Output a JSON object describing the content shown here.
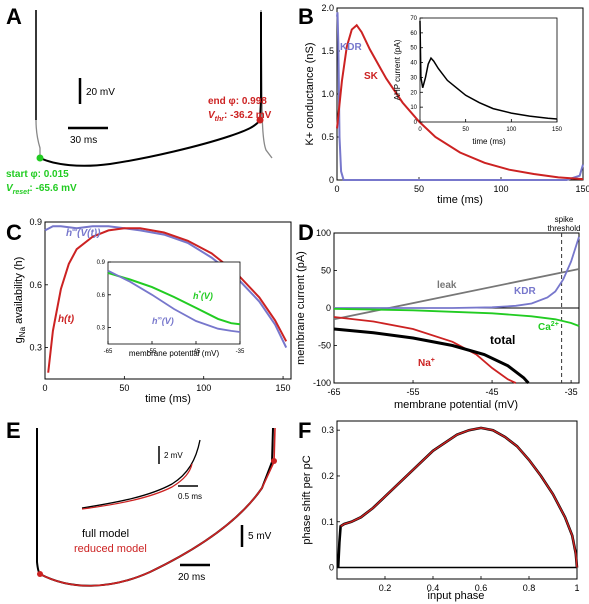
{
  "panel_letters": {
    "a": "A",
    "b": "B",
    "c": "C",
    "d": "D",
    "e": "E",
    "f": "F"
  },
  "colors": {
    "black": "#000000",
    "gray": "#888888",
    "red": "#cc2222",
    "blue": "#7777cc",
    "green": "#22cc22",
    "leak": "#777777"
  },
  "panel_a": {
    "scale_v": "20 mV",
    "scale_t": "30 ms",
    "start_label": "start φ: 0.015",
    "vreset_label": "V",
    "vreset_sub": "reset",
    "vreset_value": ": -65.6 mV",
    "end_label": "end φ: 0.998",
    "vthr_label": "V",
    "vthr_sub": "thr",
    "vthr_value": ": -36.2 mV"
  },
  "chart_data": [
    {
      "panel": "B",
      "type": "line",
      "xlabel": "time (ms)",
      "ylabel": "K+ conductance (nS)",
      "xlim": [
        0,
        150
      ],
      "ylim": [
        0,
        2.0
      ],
      "xticks": [
        "0",
        "50",
        "100",
        "150"
      ],
      "yticks": [
        "0",
        "0.5",
        "1.0",
        "1.5",
        "2.0"
      ],
      "series": [
        {
          "name": "KDR",
          "x": [
            0,
            0.3,
            0.8,
            1.5,
            2.5,
            4,
            140,
            148,
            150
          ],
          "y": [
            1.9,
            1.95,
            1.6,
            0.5,
            0.1,
            0.0,
            0.0,
            0.05,
            0.18
          ]
        },
        {
          "name": "SK",
          "x": [
            0,
            3,
            6,
            9,
            12,
            15,
            20,
            30,
            40,
            50,
            60,
            75,
            90,
            105,
            120,
            135,
            150
          ],
          "y": [
            0.6,
            1.15,
            1.55,
            1.75,
            1.8,
            1.72,
            1.52,
            1.18,
            0.9,
            0.68,
            0.5,
            0.32,
            0.2,
            0.12,
            0.07,
            0.03,
            0.01
          ]
        }
      ],
      "inset": {
        "ylabel": "AHP current (pA)",
        "xlabel": "time (ms)",
        "xlim": [
          0,
          150
        ],
        "ylim": [
          0,
          70
        ],
        "xticks": [
          "0",
          "50",
          "100",
          "150"
        ],
        "yticks": [
          "0",
          "10",
          "20",
          "30",
          "40",
          "50",
          "60",
          "70"
        ],
        "x": [
          0,
          1,
          3,
          6,
          9,
          12,
          15,
          20,
          30,
          40,
          50,
          65,
          80,
          100,
          120,
          140,
          150
        ],
        "y": [
          68,
          30,
          23,
          30,
          39,
          43,
          41,
          36,
          28,
          23,
          18,
          13,
          9,
          6,
          4,
          2.5,
          2
        ]
      }
    },
    {
      "panel": "C",
      "type": "line",
      "xlabel": "time (ms)",
      "ylabel_main": "g",
      "ylabel_sub": "Na",
      "ylabel_rest": " availability (h)",
      "xlim": [
        0,
        155
      ],
      "ylim": [
        0.15,
        0.9
      ],
      "xticks": [
        "0",
        "50",
        "100",
        "150"
      ],
      "yticks": [
        "0.3",
        "0.6",
        "0.9"
      ],
      "series": [
        {
          "name": "h(t)",
          "x": [
            2,
            5,
            10,
            15,
            20,
            30,
            40,
            50,
            60,
            75,
            90,
            105,
            120,
            135,
            145,
            152
          ],
          "y": [
            0.18,
            0.38,
            0.58,
            0.7,
            0.77,
            0.83,
            0.86,
            0.87,
            0.87,
            0.85,
            0.81,
            0.75,
            0.66,
            0.54,
            0.43,
            0.33
          ]
        },
        {
          "name": "h∞(V(t))",
          "x": [
            0,
            5,
            10,
            20,
            30,
            40,
            50,
            60,
            75,
            90,
            105,
            120,
            135,
            145,
            152
          ],
          "y": [
            0.86,
            0.88,
            0.88,
            0.87,
            0.88,
            0.88,
            0.87,
            0.86,
            0.84,
            0.8,
            0.73,
            0.64,
            0.52,
            0.41,
            0.3
          ]
        }
      ],
      "labels": {
        "h_inf_t": "h",
        "h_inf_t_sup": "∞",
        "h_inf_t_rest": "(V(t))",
        "h_t": "h(t)"
      },
      "inset": {
        "xlabel": "membrane potential (mV)",
        "xlim": [
          -65,
          -35
        ],
        "ylim": [
          0.15,
          0.9
        ],
        "xticks": [
          "-65",
          "-55",
          "-45",
          "-35"
        ],
        "yticks": [
          "0.3",
          "0.6",
          "0.9"
        ],
        "series": [
          {
            "name": "h*(V)",
            "x": [
              -65,
              -60,
              -55,
              -50,
              -45,
              -40,
              -37,
              -35
            ],
            "y": [
              0.8,
              0.74,
              0.67,
              0.58,
              0.48,
              0.38,
              0.34,
              0.33
            ]
          },
          {
            "name": "h∞(V)",
            "x": [
              -65,
              -60,
              -55,
              -50,
              -45,
              -40,
              -37,
              -35
            ],
            "y": [
              0.82,
              0.72,
              0.6,
              0.47,
              0.36,
              0.29,
              0.27,
              0.26
            ]
          }
        ],
        "labels": {
          "h_star": "h",
          "h_star_sup": "*",
          "h_star_rest": "(V)",
          "h_inf": "h",
          "h_inf_sup": "∞",
          "h_inf_rest": "(V)"
        }
      }
    },
    {
      "panel": "D",
      "type": "line",
      "xlabel": "membrane potential (mV)",
      "ylabel": "membrane current (pA)",
      "xlim": [
        -65,
        -34
      ],
      "ylim": [
        -100,
        100
      ],
      "xticks": [
        "-65",
        "-55",
        "-45",
        "-35"
      ],
      "yticks": [
        "-100",
        "-50",
        "0",
        "50",
        "100"
      ],
      "threshold_label_1": "spike",
      "threshold_label_2": "threshold",
      "threshold_x": -36.2,
      "series": [
        {
          "name": "leak",
          "x": [
            -65,
            -34
          ],
          "y": [
            -15,
            52
          ]
        },
        {
          "name": "KDR",
          "x": [
            -65,
            -50,
            -45,
            -42,
            -40,
            -38,
            -37,
            -36,
            -35,
            -34
          ],
          "y": [
            0,
            0,
            1,
            3,
            6,
            14,
            22,
            38,
            62,
            95
          ]
        },
        {
          "name": "Ca2+",
          "x": [
            -65,
            -55,
            -50,
            -45,
            -40,
            -37,
            -35,
            -34
          ],
          "y": [
            -1,
            -3,
            -5,
            -7,
            -11,
            -15,
            -20,
            -24
          ]
        },
        {
          "name": "Na+",
          "x": [
            -65,
            -60,
            -55,
            -50,
            -47,
            -45,
            -43,
            -42
          ],
          "y": [
            -12,
            -18,
            -28,
            -45,
            -62,
            -80,
            -95,
            -100
          ]
        },
        {
          "name": "total",
          "x": [
            -65,
            -60,
            -55,
            -50,
            -46,
            -43,
            -41,
            -40.4
          ],
          "y": [
            -28,
            -33,
            -40,
            -50,
            -62,
            -77,
            -93,
            -100
          ]
        }
      ],
      "labels": {
        "leak": "leak",
        "kdr": "KDR",
        "ca": "Ca",
        "ca_sup": "2+",
        "na": "Na",
        "na_sup": "+",
        "total": "total"
      }
    },
    {
      "panel": "F",
      "type": "line",
      "xlabel": "input phase",
      "ylabel": "phase shift per pC",
      "xlim": [
        0,
        1
      ],
      "ylim": [
        0,
        0.3
      ],
      "xticks": [
        "0.2",
        "0.4",
        "0.6",
        "0.8",
        "1"
      ],
      "yticks": [
        "0",
        "0.1",
        "0.2",
        "0.3"
      ],
      "series": [
        {
          "name": "full model",
          "x": [
            0.005,
            0.01,
            0.015,
            0.03,
            0.06,
            0.1,
            0.15,
            0.2,
            0.3,
            0.4,
            0.5,
            0.55,
            0.6,
            0.65,
            0.7,
            0.75,
            0.8,
            0.85,
            0.9,
            0.95,
            0.98,
            0.995,
            1.0
          ],
          "y": [
            0,
            0.055,
            0.09,
            0.095,
            0.1,
            0.11,
            0.13,
            0.155,
            0.205,
            0.255,
            0.29,
            0.3,
            0.305,
            0.3,
            0.285,
            0.265,
            0.235,
            0.2,
            0.16,
            0.11,
            0.07,
            0.03,
            0
          ]
        },
        {
          "name": "reduced model",
          "x": [
            0.015,
            0.03,
            0.06,
            0.1,
            0.15,
            0.2,
            0.3,
            0.4,
            0.5,
            0.55,
            0.6,
            0.65,
            0.7,
            0.75,
            0.8,
            0.85,
            0.9,
            0.95,
            0.98,
            0.995,
            1.0
          ],
          "y": [
            0.09,
            0.095,
            0.1,
            0.11,
            0.13,
            0.155,
            0.205,
            0.255,
            0.29,
            0.3,
            0.305,
            0.3,
            0.285,
            0.265,
            0.235,
            0.2,
            0.16,
            0.11,
            0.07,
            0.03,
            0
          ]
        }
      ]
    }
  ],
  "panel_e": {
    "scale_v": "5 mV",
    "scale_t": "20 ms",
    "inset_scale_v": "2 mV",
    "inset_scale_t": "0.5 ms",
    "legend_full": "full model",
    "legend_reduced": "reduced model"
  }
}
